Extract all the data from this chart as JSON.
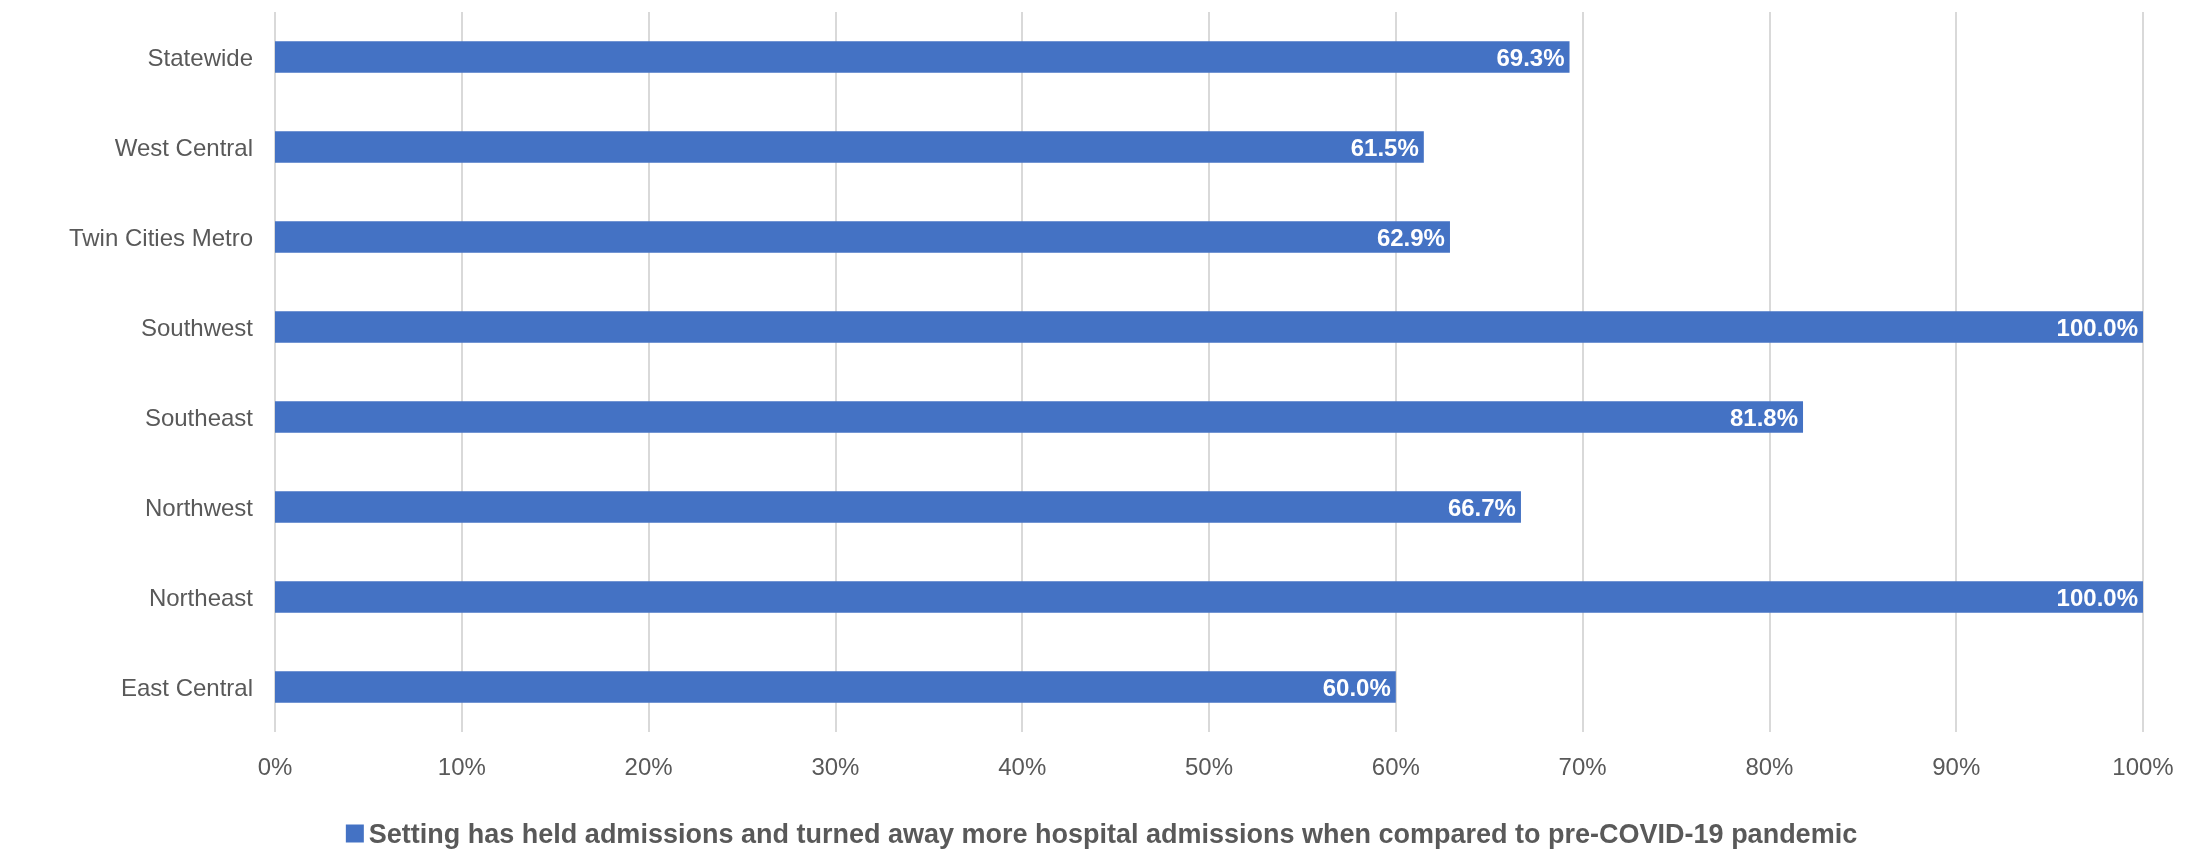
{
  "chart_data": {
    "type": "bar",
    "orientation": "horizontal",
    "categories": [
      "Statewide",
      "West Central",
      "Twin Cities Metro",
      "Southwest",
      "Southeast",
      "Northwest",
      "Northeast",
      "East Central"
    ],
    "series": [
      {
        "name": "Setting has held admissions and turned away more hospital admissions when compared to pre-COVID-19 pandemic",
        "color": "#4472c4",
        "values": [
          69.3,
          61.5,
          62.9,
          100.0,
          81.8,
          66.7,
          100.0,
          60.0
        ],
        "value_labels": [
          "69.3%",
          "61.5%",
          "62.9%",
          "100.0%",
          "81.8%",
          "66.7%",
          "100.0%",
          "60.0%"
        ]
      }
    ],
    "xlim": [
      0,
      100
    ],
    "xticks": [
      {
        "value": 0,
        "label": "0%"
      },
      {
        "value": 10,
        "label": "10%"
      },
      {
        "value": 20,
        "label": "20%"
      },
      {
        "value": 30,
        "label": "30%"
      },
      {
        "value": 40,
        "label": "40%"
      },
      {
        "value": 50,
        "label": "50%"
      },
      {
        "value": 60,
        "label": "60%"
      },
      {
        "value": 70,
        "label": "70%"
      },
      {
        "value": 80,
        "label": "80%"
      },
      {
        "value": 90,
        "label": "90%"
      },
      {
        "value": 100,
        "label": "100%"
      }
    ],
    "grid": "x",
    "legend": "bottom"
  }
}
